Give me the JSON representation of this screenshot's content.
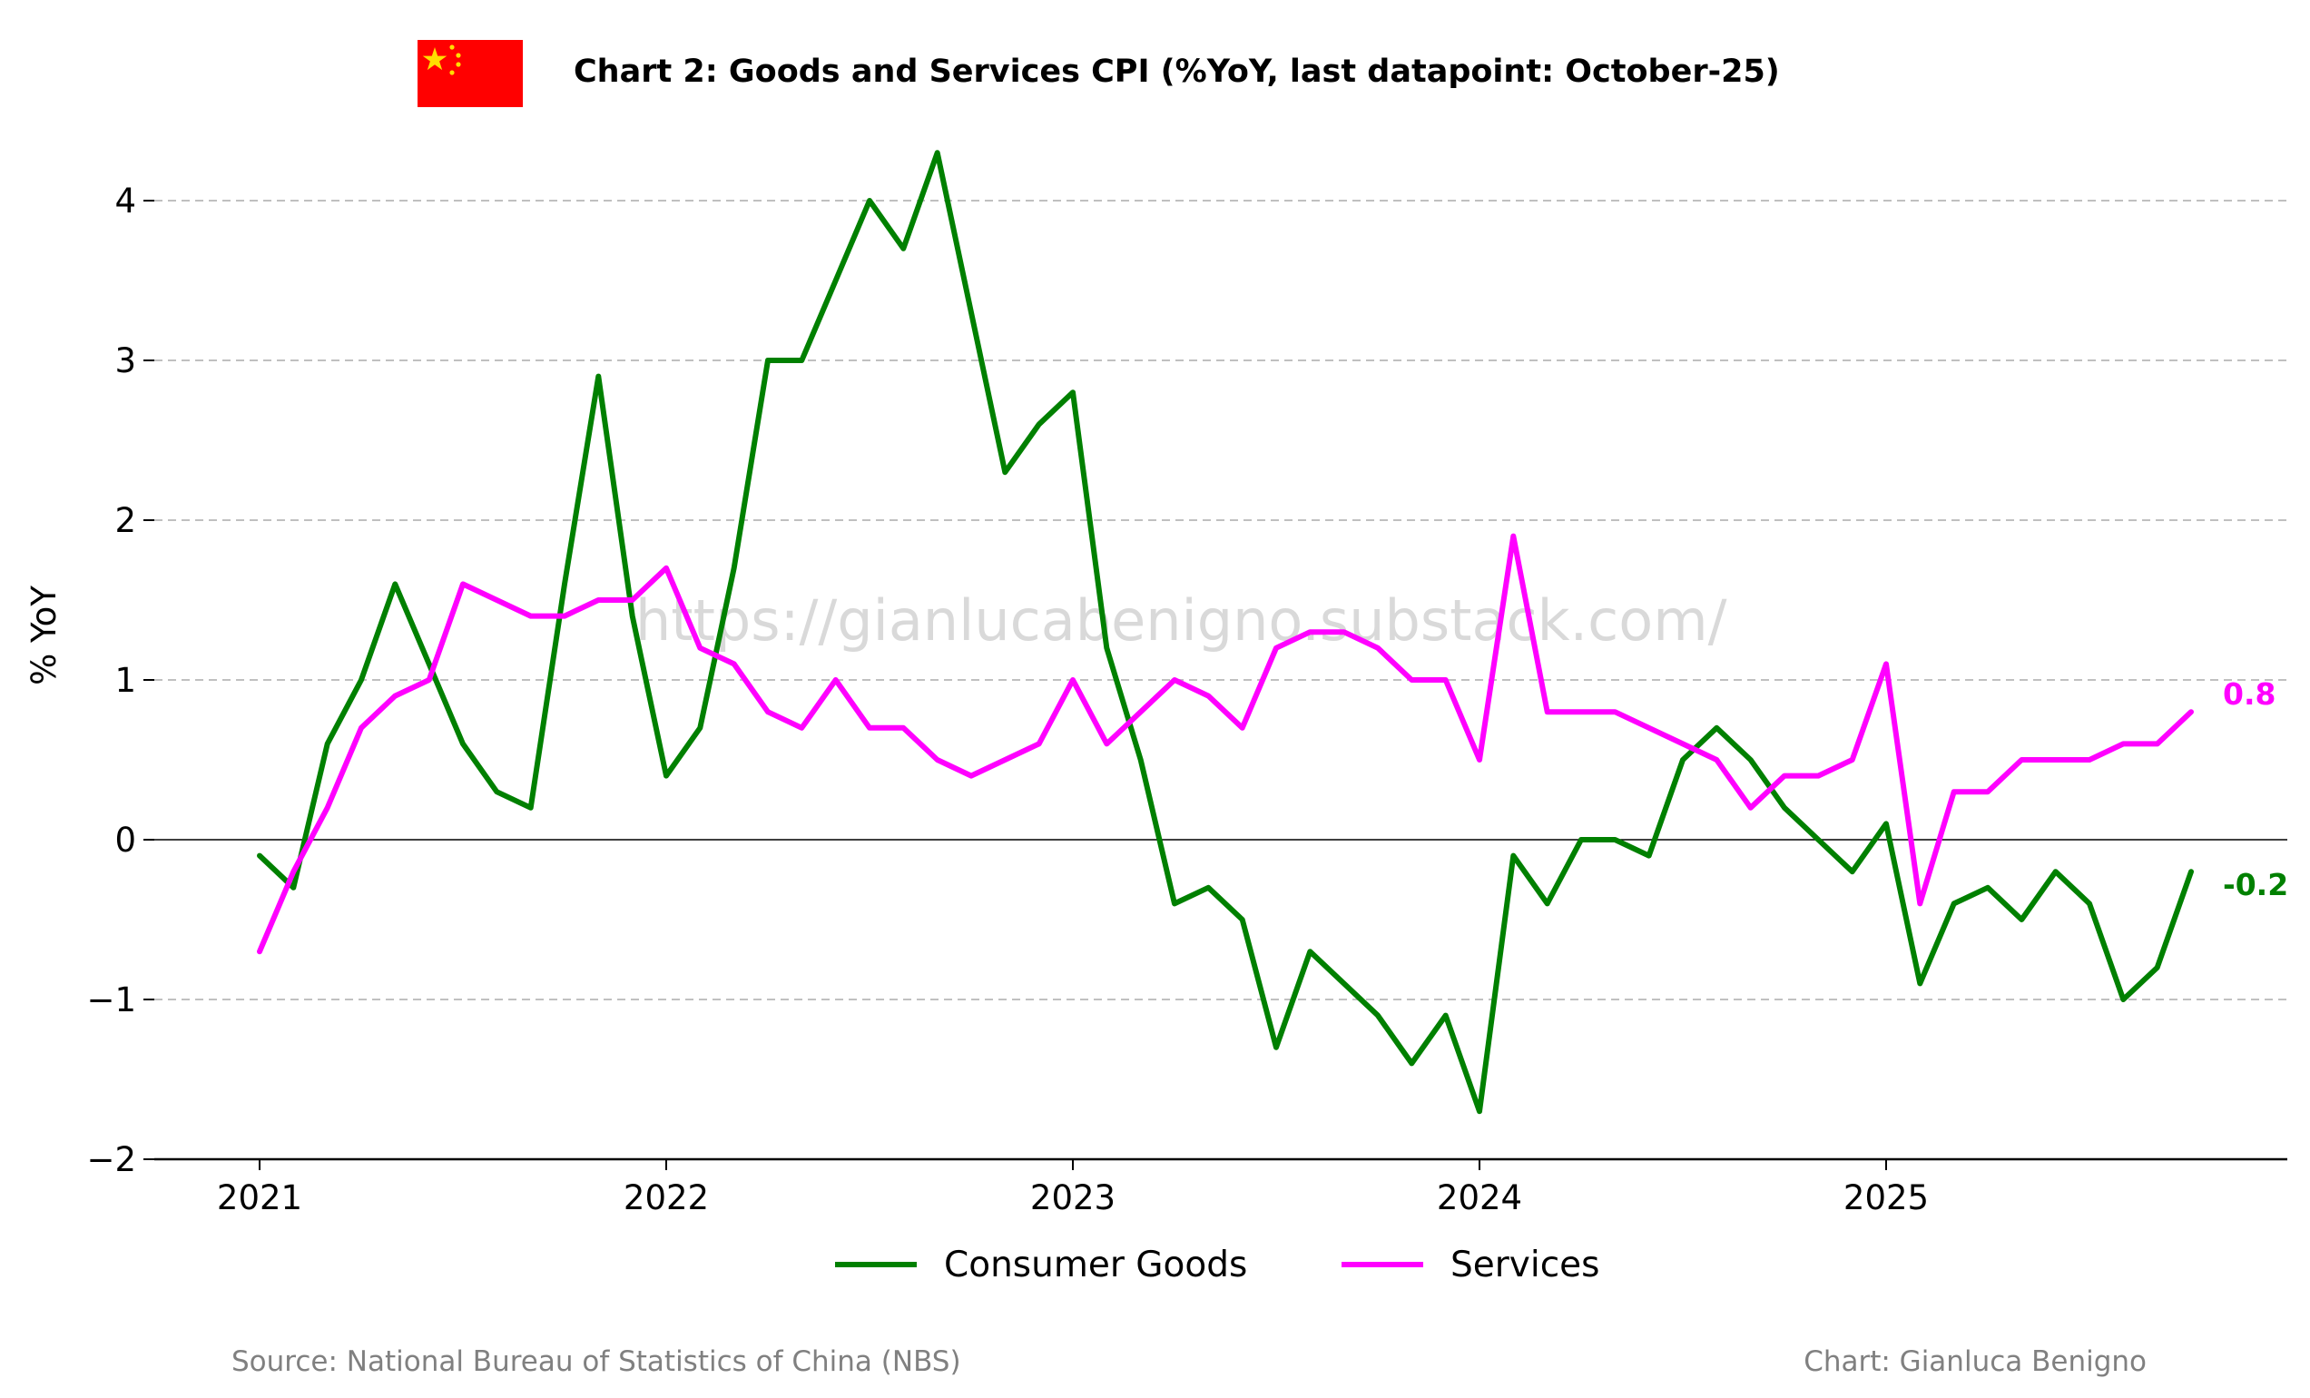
{
  "title": "Chart 2: Goods and Services CPI (%YoY, last datapoint: October-25)",
  "watermark": "https://gianlucabenigno.substack.com/",
  "source": "Source: National Bureau of Statistics of China (NBS)",
  "credit": "Chart: Gianluca Benigno",
  "flag": {
    "background": "#ff0000",
    "stars": "#ffde00"
  },
  "chart_data": {
    "type": "line",
    "ylabel": "% YoY",
    "xlabel": "",
    "ylim": [
      -2,
      4.4
    ],
    "yticks": [
      -2,
      -1,
      0,
      1,
      2,
      3,
      4
    ],
    "xticks": [
      "2021",
      "2022",
      "2023",
      "2024",
      "2025"
    ],
    "grid": "horizontal dashed",
    "legend_position": "bottom-center",
    "x": [
      "2021-01",
      "2021-02",
      "2021-03",
      "2021-04",
      "2021-05",
      "2021-06",
      "2021-07",
      "2021-08",
      "2021-09",
      "2021-10",
      "2021-11",
      "2021-12",
      "2022-01",
      "2022-02",
      "2022-03",
      "2022-04",
      "2022-05",
      "2022-06",
      "2022-07",
      "2022-08",
      "2022-09",
      "2022-10",
      "2022-11",
      "2022-12",
      "2023-01",
      "2023-02",
      "2023-03",
      "2023-04",
      "2023-05",
      "2023-06",
      "2023-07",
      "2023-08",
      "2023-09",
      "2023-10",
      "2023-11",
      "2023-12",
      "2024-01",
      "2024-02",
      "2024-03",
      "2024-04",
      "2024-05",
      "2024-06",
      "2024-07",
      "2024-08",
      "2024-09",
      "2024-10",
      "2024-11",
      "2024-12",
      "2025-01",
      "2025-02",
      "2025-03",
      "2025-04",
      "2025-05",
      "2025-06",
      "2025-07",
      "2025-08",
      "2025-09",
      "2025-10"
    ],
    "series": [
      {
        "name": "Consumer Goods",
        "color": "#008000",
        "last_label": "-0.2",
        "values": [
          -0.1,
          -0.3,
          0.6,
          1.0,
          1.6,
          1.1,
          0.6,
          0.3,
          0.2,
          1.6,
          2.9,
          1.4,
          0.4,
          0.7,
          1.7,
          3.0,
          3.0,
          3.5,
          4.0,
          3.7,
          4.3,
          3.3,
          2.3,
          2.6,
          2.8,
          1.2,
          0.5,
          -0.4,
          -0.3,
          -0.5,
          -1.3,
          -0.7,
          -0.9,
          -1.1,
          -1.4,
          -1.1,
          -1.7,
          -0.1,
          -0.4,
          0.0,
          0.0,
          -0.1,
          0.5,
          0.7,
          0.5,
          0.2,
          0.0,
          -0.2,
          0.1,
          -0.9,
          -0.4,
          -0.3,
          -0.5,
          -0.2,
          -0.4,
          -1.0,
          -0.8,
          -0.2
        ]
      },
      {
        "name": "Services",
        "color": "#ff00ff",
        "last_label": "0.8",
        "values": [
          -0.7,
          -0.2,
          0.2,
          0.7,
          0.9,
          1.0,
          1.6,
          1.5,
          1.4,
          1.4,
          1.5,
          1.5,
          1.7,
          1.2,
          1.1,
          0.8,
          0.7,
          1.0,
          0.7,
          0.7,
          0.5,
          0.4,
          0.5,
          0.6,
          1.0,
          0.6,
          0.8,
          1.0,
          0.9,
          0.7,
          1.2,
          1.3,
          1.3,
          1.2,
          1.0,
          1.0,
          0.5,
          1.9,
          0.8,
          0.8,
          0.8,
          0.7,
          0.6,
          0.5,
          0.2,
          0.4,
          0.4,
          0.5,
          1.1,
          -0.4,
          0.3,
          0.3,
          0.5,
          0.5,
          0.5,
          0.6,
          0.6,
          0.8
        ]
      }
    ]
  }
}
